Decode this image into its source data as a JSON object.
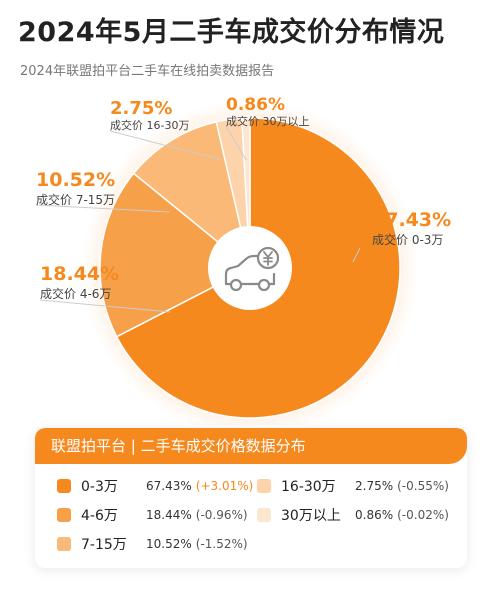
{
  "header": {
    "title": "2024年5月二手车成交价分布情况",
    "subtitle": "2024年联盟拍平台二手车在线拍卖数据报告"
  },
  "chart_data": {
    "type": "pie",
    "title": "2024年5月二手车成交价分布情况",
    "subtitle": "2024年联盟拍平台二手车在线拍卖数据报告",
    "slices": [
      {
        "label": "成交价 0-3万",
        "legend": "0-3万",
        "value": 67.43,
        "pct_text": "67.43%",
        "change": "(+3.01%)",
        "color": "#f5891e"
      },
      {
        "label": "成交价 4-6万",
        "legend": "4-6万",
        "value": 18.44,
        "pct_text": "18.44%",
        "change": "(-0.96%)",
        "color": "#f7a04a"
      },
      {
        "label": "成交价 7-15万",
        "legend": "7-15万",
        "value": 10.52,
        "pct_text": "10.52%",
        "change": "(-1.52%)",
        "color": "#fbb978"
      },
      {
        "label": "成交价 16-30万",
        "legend": "16-30万",
        "value": 2.75,
        "pct_text": "2.75%",
        "change": "(-0.55%)",
        "color": "#fcd3aa"
      },
      {
        "label": "成交价 30万以上",
        "legend": "30万以上",
        "value": 0.86,
        "pct_text": "0.86%",
        "change": "(-0.02%)",
        "color": "#fde6d0"
      }
    ],
    "legend_title": "联盟拍平台 | 二手车成交价格数据分布",
    "center_icon": "car-yen-icon"
  },
  "colors": {
    "accent": "#f5891e",
    "text_dark": "#222222",
    "text_muted": "#777777"
  }
}
